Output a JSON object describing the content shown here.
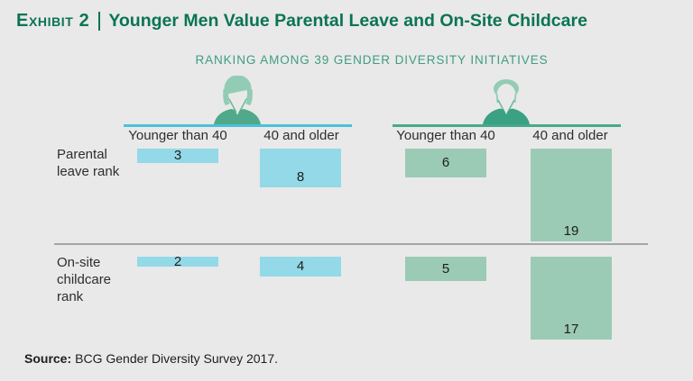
{
  "header": {
    "exhibit_label": "Exhibit 2",
    "title": "Younger Men Value Parental Leave and On-Site Childcare"
  },
  "subtitle": "RANKING AMONG 39 GENDER DIVERSITY INITIATIVES",
  "source": {
    "label": "Source:",
    "text": "BCG Gender Diversity Survey 2017."
  },
  "colors": {
    "background": "#e9e9e9",
    "title_green": "#0a7454",
    "subtitle_green": "#3f9c83",
    "women_bar": "#93d9e8",
    "women_line": "#4cc0db",
    "men_bar": "#9bcab5",
    "men_line": "#47a98b",
    "divider": "#a5a5a5",
    "text_dark": "#2e2e2e",
    "text_black": "#1d1d1d",
    "icon_hair": "#92ccb4",
    "icon_strand": "#6fbb9c",
    "icon_woman_body": "#4fa98a",
    "icon_man_body": "#3aa183"
  },
  "chart_data": {
    "type": "bar",
    "title": "Ranking among 39 gender diversity initiatives",
    "orientation": "vertical-hanging",
    "value_range": [
      1,
      39
    ],
    "grid": false,
    "legend": "none",
    "groups": [
      "Women",
      "Men"
    ],
    "column_headers": [
      "Younger than 40",
      "40 and older",
      "Younger than 40",
      "40 and older"
    ],
    "categories": [
      "Parental leave rank",
      "On-site childcare rank"
    ],
    "series": [
      {
        "name": "Women younger than 40",
        "group": "Women",
        "values": [
          3,
          2
        ]
      },
      {
        "name": "Women 40 and older",
        "group": "Women",
        "values": [
          8,
          4
        ]
      },
      {
        "name": "Men younger than 40",
        "group": "Men",
        "values": [
          6,
          5
        ]
      },
      {
        "name": "Men 40 and older",
        "group": "Men",
        "values": [
          19,
          17
        ]
      }
    ]
  }
}
